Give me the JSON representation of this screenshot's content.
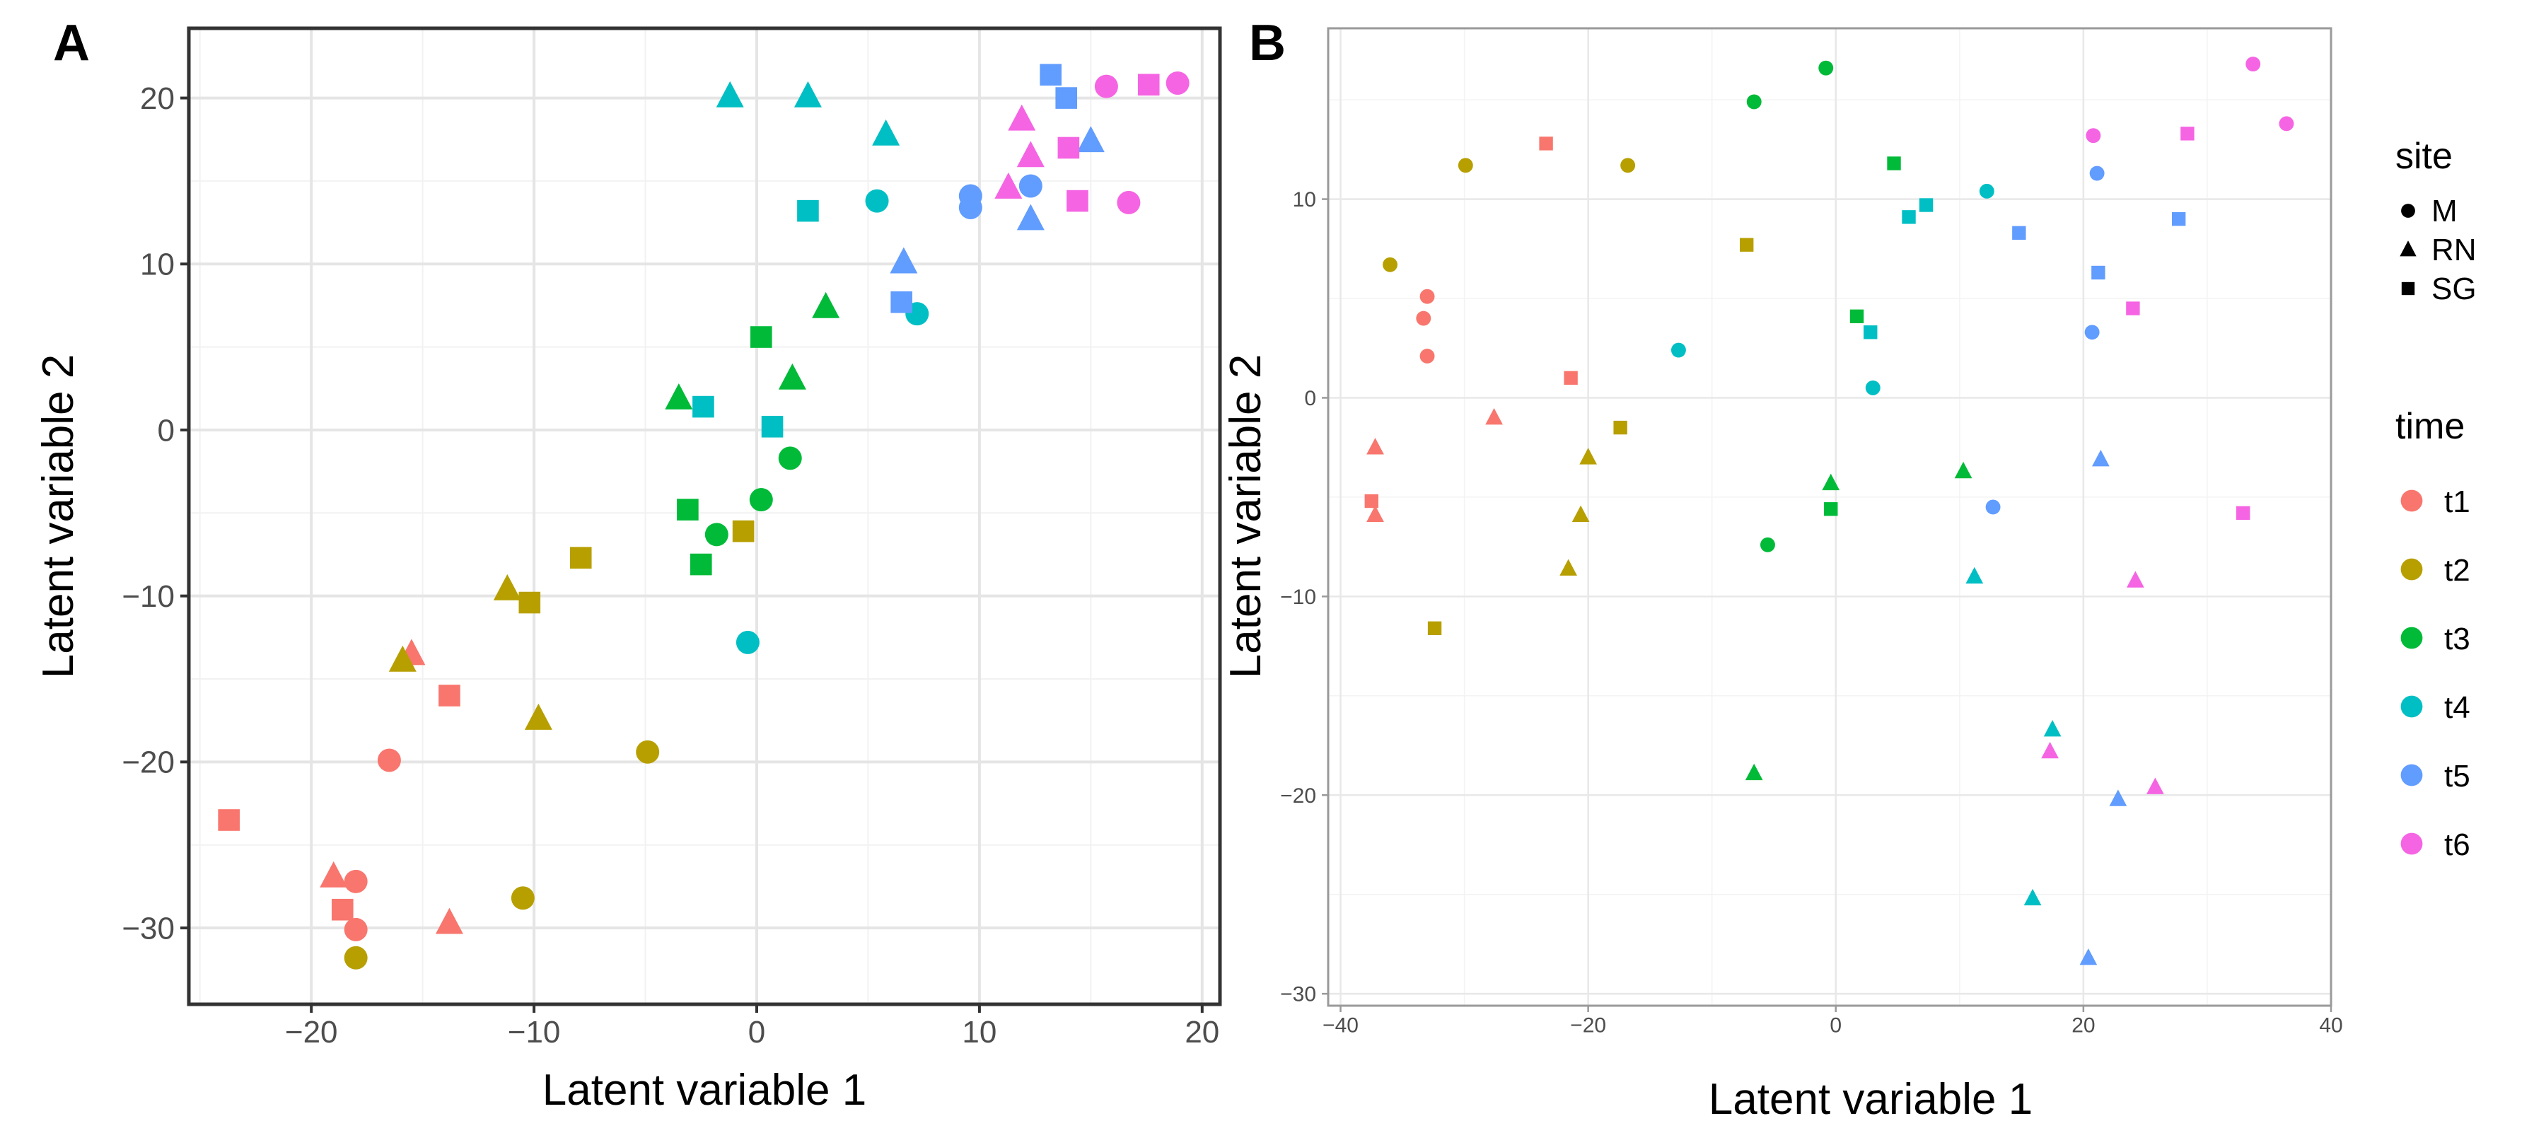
{
  "colors": {
    "t1": "#F8766D",
    "t2": "#B79F00",
    "t3": "#00BA38",
    "t4": "#00BFC4",
    "t5": "#619CFF",
    "t6": "#F564E3"
  },
  "chart_data": [
    {
      "id": "A",
      "type": "scatter",
      "panel_label": "A",
      "xlabel": "Latent variable 1",
      "ylabel": "Latent variable 2",
      "xlim": [
        -25.5,
        20.8
      ],
      "ylim": [
        -34.6,
        24.2
      ],
      "xticks": [
        -20,
        -10,
        0,
        10,
        20
      ],
      "yticks": [
        -30,
        -20,
        -10,
        0,
        10,
        20
      ],
      "xtick_labels": [
        "−20",
        "−10",
        "0",
        "10",
        "20"
      ],
      "ytick_labels": [
        "−30",
        "−20",
        "−10",
        "0",
        "10",
        "20"
      ],
      "points": [
        {
          "x": -18.0,
          "y": -27.2,
          "site": "M",
          "time": "t1"
        },
        {
          "x": -18.0,
          "y": -30.1,
          "site": "M",
          "time": "t1"
        },
        {
          "x": -16.5,
          "y": -19.9,
          "site": "M",
          "time": "t1"
        },
        {
          "x": -19.0,
          "y": -26.9,
          "site": "RN",
          "time": "t1"
        },
        {
          "x": -15.5,
          "y": -13.5,
          "site": "RN",
          "time": "t1"
        },
        {
          "x": -13.8,
          "y": -29.7,
          "site": "RN",
          "time": "t1"
        },
        {
          "x": -23.7,
          "y": -23.5,
          "site": "SG",
          "time": "t1"
        },
        {
          "x": -18.6,
          "y": -28.9,
          "site": "SG",
          "time": "t1"
        },
        {
          "x": -13.8,
          "y": -16.0,
          "site": "SG",
          "time": "t1"
        },
        {
          "x": -18.0,
          "y": -31.8,
          "site": "M",
          "time": "t2"
        },
        {
          "x": -10.5,
          "y": -28.2,
          "site": "M",
          "time": "t2"
        },
        {
          "x": -4.9,
          "y": -19.4,
          "site": "M",
          "time": "t2"
        },
        {
          "x": -15.9,
          "y": -13.9,
          "site": "RN",
          "time": "t2"
        },
        {
          "x": -11.2,
          "y": -9.6,
          "site": "RN",
          "time": "t2"
        },
        {
          "x": -9.8,
          "y": -17.4,
          "site": "RN",
          "time": "t2"
        },
        {
          "x": -10.2,
          "y": -10.4,
          "site": "SG",
          "time": "t2"
        },
        {
          "x": -7.9,
          "y": -7.7,
          "site": "SG",
          "time": "t2"
        },
        {
          "x": -0.6,
          "y": -6.1,
          "site": "SG",
          "time": "t2"
        },
        {
          "x": -1.8,
          "y": -6.3,
          "site": "M",
          "time": "t3"
        },
        {
          "x": 0.2,
          "y": -4.2,
          "site": "M",
          "time": "t3"
        },
        {
          "x": 1.5,
          "y": -1.7,
          "site": "M",
          "time": "t3"
        },
        {
          "x": -3.5,
          "y": 1.9,
          "site": "RN",
          "time": "t3"
        },
        {
          "x": 1.6,
          "y": 3.1,
          "site": "RN",
          "time": "t3"
        },
        {
          "x": 3.1,
          "y": 7.4,
          "site": "RN",
          "time": "t3"
        },
        {
          "x": -3.1,
          "y": -4.8,
          "site": "SG",
          "time": "t3"
        },
        {
          "x": -2.5,
          "y": -8.1,
          "site": "SG",
          "time": "t3"
        },
        {
          "x": 0.2,
          "y": 5.6,
          "site": "SG",
          "time": "t3"
        },
        {
          "x": -0.4,
          "y": -12.8,
          "site": "M",
          "time": "t4"
        },
        {
          "x": 5.4,
          "y": 13.8,
          "site": "M",
          "time": "t4"
        },
        {
          "x": 7.2,
          "y": 7.0,
          "site": "M",
          "time": "t4"
        },
        {
          "x": -1.2,
          "y": 20.1,
          "site": "RN",
          "time": "t4"
        },
        {
          "x": 2.3,
          "y": 20.1,
          "site": "RN",
          "time": "t4"
        },
        {
          "x": 5.8,
          "y": 17.8,
          "site": "RN",
          "time": "t4"
        },
        {
          "x": -2.4,
          "y": 1.4,
          "site": "SG",
          "time": "t4"
        },
        {
          "x": 0.7,
          "y": 0.2,
          "site": "SG",
          "time": "t4"
        },
        {
          "x": 2.3,
          "y": 13.2,
          "site": "SG",
          "time": "t4"
        },
        {
          "x": 9.6,
          "y": 14.1,
          "site": "M",
          "time": "t5"
        },
        {
          "x": 9.6,
          "y": 13.4,
          "site": "M",
          "time": "t5"
        },
        {
          "x": 12.3,
          "y": 14.7,
          "site": "M",
          "time": "t5"
        },
        {
          "x": 6.6,
          "y": 10.1,
          "site": "RN",
          "time": "t5"
        },
        {
          "x": 12.3,
          "y": 12.7,
          "site": "RN",
          "time": "t5"
        },
        {
          "x": 15.0,
          "y": 17.4,
          "site": "RN",
          "time": "t5"
        },
        {
          "x": 6.5,
          "y": 7.7,
          "site": "SG",
          "time": "t5"
        },
        {
          "x": 13.2,
          "y": 21.4,
          "site": "SG",
          "time": "t5"
        },
        {
          "x": 13.9,
          "y": 20.0,
          "site": "SG",
          "time": "t5"
        },
        {
          "x": 15.7,
          "y": 20.7,
          "site": "M",
          "time": "t6"
        },
        {
          "x": 18.9,
          "y": 20.9,
          "site": "M",
          "time": "t6"
        },
        {
          "x": 16.7,
          "y": 13.7,
          "site": "M",
          "time": "t6"
        },
        {
          "x": 11.3,
          "y": 14.6,
          "site": "RN",
          "time": "t6"
        },
        {
          "x": 11.9,
          "y": 18.7,
          "site": "RN",
          "time": "t6"
        },
        {
          "x": 12.3,
          "y": 16.5,
          "site": "RN",
          "time": "t6"
        },
        {
          "x": 14.0,
          "y": 17.0,
          "site": "SG",
          "time": "t6"
        },
        {
          "x": 14.4,
          "y": 13.8,
          "site": "SG",
          "time": "t6"
        },
        {
          "x": 17.6,
          "y": 20.8,
          "site": "SG",
          "time": "t6"
        }
      ]
    },
    {
      "id": "B",
      "type": "scatter",
      "panel_label": "B",
      "xlabel": "Latent variable 1",
      "ylabel": "Latent variable 2",
      "xlim": [
        -41.0,
        40.0
      ],
      "ylim": [
        -30.6,
        18.6
      ],
      "xticks": [
        -40,
        -20,
        0,
        20,
        40
      ],
      "yticks": [
        -30,
        -20,
        -10,
        0,
        10
      ],
      "xtick_labels": [
        "−40",
        "−20",
        "0",
        "20",
        "40"
      ],
      "ytick_labels": [
        "−30",
        "−20",
        "−10",
        "0",
        "10"
      ],
      "points": [
        {
          "x": -33.0,
          "y": 5.1,
          "site": "M",
          "time": "t1"
        },
        {
          "x": -33.3,
          "y": 4.0,
          "site": "M",
          "time": "t1"
        },
        {
          "x": -33.0,
          "y": 2.1,
          "site": "M",
          "time": "t1"
        },
        {
          "x": -37.2,
          "y": -2.5,
          "site": "RN",
          "time": "t1"
        },
        {
          "x": -37.2,
          "y": -5.9,
          "site": "RN",
          "time": "t1"
        },
        {
          "x": -27.6,
          "y": -1.0,
          "site": "RN",
          "time": "t1"
        },
        {
          "x": -37.5,
          "y": -5.2,
          "site": "SG",
          "time": "t1"
        },
        {
          "x": -23.4,
          "y": 12.8,
          "site": "SG",
          "time": "t1"
        },
        {
          "x": -21.4,
          "y": 1.0,
          "site": "SG",
          "time": "t1"
        },
        {
          "x": -36.0,
          "y": 6.7,
          "site": "M",
          "time": "t2"
        },
        {
          "x": -29.9,
          "y": 11.7,
          "site": "M",
          "time": "t2"
        },
        {
          "x": -16.8,
          "y": 11.7,
          "site": "M",
          "time": "t2"
        },
        {
          "x": -20.6,
          "y": -5.9,
          "site": "RN",
          "time": "t2"
        },
        {
          "x": -21.6,
          "y": -8.6,
          "site": "RN",
          "time": "t2"
        },
        {
          "x": -20.0,
          "y": -3.0,
          "site": "RN",
          "time": "t2"
        },
        {
          "x": -17.4,
          "y": -1.5,
          "site": "SG",
          "time": "t2"
        },
        {
          "x": -7.2,
          "y": 7.7,
          "site": "SG",
          "time": "t2"
        },
        {
          "x": -32.4,
          "y": -11.6,
          "site": "SG",
          "time": "t2"
        },
        {
          "x": -6.6,
          "y": 14.9,
          "site": "M",
          "time": "t3"
        },
        {
          "x": -0.8,
          "y": 16.6,
          "site": "M",
          "time": "t3"
        },
        {
          "x": -5.5,
          "y": -7.4,
          "site": "M",
          "time": "t3"
        },
        {
          "x": -0.4,
          "y": -4.3,
          "site": "RN",
          "time": "t3"
        },
        {
          "x": 10.3,
          "y": -3.7,
          "site": "RN",
          "time": "t3"
        },
        {
          "x": -6.6,
          "y": -18.9,
          "site": "RN",
          "time": "t3"
        },
        {
          "x": 4.7,
          "y": 11.8,
          "site": "SG",
          "time": "t3"
        },
        {
          "x": 1.7,
          "y": 4.1,
          "site": "SG",
          "time": "t3"
        },
        {
          "x": -0.4,
          "y": -5.6,
          "site": "SG",
          "time": "t3"
        },
        {
          "x": -12.7,
          "y": 2.4,
          "site": "M",
          "time": "t4"
        },
        {
          "x": 3.0,
          "y": 0.5,
          "site": "M",
          "time": "t4"
        },
        {
          "x": 12.2,
          "y": 10.4,
          "site": "M",
          "time": "t4"
        },
        {
          "x": 11.2,
          "y": -9.0,
          "site": "RN",
          "time": "t4"
        },
        {
          "x": 17.5,
          "y": -16.7,
          "site": "RN",
          "time": "t4"
        },
        {
          "x": 15.9,
          "y": -25.2,
          "site": "RN",
          "time": "t4"
        },
        {
          "x": 2.8,
          "y": 3.3,
          "site": "SG",
          "time": "t4"
        },
        {
          "x": 5.9,
          "y": 9.1,
          "site": "SG",
          "time": "t4"
        },
        {
          "x": 7.3,
          "y": 9.7,
          "site": "SG",
          "time": "t4"
        },
        {
          "x": 21.1,
          "y": 11.3,
          "site": "M",
          "time": "t5"
        },
        {
          "x": 20.7,
          "y": 3.3,
          "site": "M",
          "time": "t5"
        },
        {
          "x": 12.7,
          "y": -5.5,
          "site": "M",
          "time": "t5"
        },
        {
          "x": 21.4,
          "y": -3.1,
          "site": "RN",
          "time": "t5"
        },
        {
          "x": 22.8,
          "y": -20.2,
          "site": "RN",
          "time": "t5"
        },
        {
          "x": 20.4,
          "y": -28.2,
          "site": "RN",
          "time": "t5"
        },
        {
          "x": 14.8,
          "y": 8.3,
          "site": "SG",
          "time": "t5"
        },
        {
          "x": 21.2,
          "y": 6.3,
          "site": "SG",
          "time": "t5"
        },
        {
          "x": 27.7,
          "y": 9.0,
          "site": "SG",
          "time": "t5"
        },
        {
          "x": 20.8,
          "y": 13.2,
          "site": "M",
          "time": "t6"
        },
        {
          "x": 33.7,
          "y": 16.8,
          "site": "M",
          "time": "t6"
        },
        {
          "x": 36.4,
          "y": 13.8,
          "site": "M",
          "time": "t6"
        },
        {
          "x": 17.3,
          "y": -17.8,
          "site": "RN",
          "time": "t6"
        },
        {
          "x": 24.2,
          "y": -9.2,
          "site": "RN",
          "time": "t6"
        },
        {
          "x": 25.8,
          "y": -19.6,
          "site": "RN",
          "time": "t6"
        },
        {
          "x": 24.0,
          "y": 4.5,
          "site": "SG",
          "time": "t6"
        },
        {
          "x": 28.4,
          "y": 13.3,
          "site": "SG",
          "time": "t6"
        },
        {
          "x": 32.9,
          "y": -5.8,
          "site": "SG",
          "time": "t6"
        }
      ]
    }
  ],
  "legend": {
    "site_title": "site",
    "site_items": [
      {
        "key": "M",
        "label": "M",
        "shape": "circle"
      },
      {
        "key": "RN",
        "label": "RN",
        "shape": "triangle"
      },
      {
        "key": "SG",
        "label": "SG",
        "shape": "square"
      }
    ],
    "time_title": "time",
    "time_items": [
      {
        "key": "t1",
        "label": "t1"
      },
      {
        "key": "t2",
        "label": "t2"
      },
      {
        "key": "t3",
        "label": "t3"
      },
      {
        "key": "t4",
        "label": "t4"
      },
      {
        "key": "t5",
        "label": "t5"
      },
      {
        "key": "t6",
        "label": "t6"
      }
    ]
  }
}
